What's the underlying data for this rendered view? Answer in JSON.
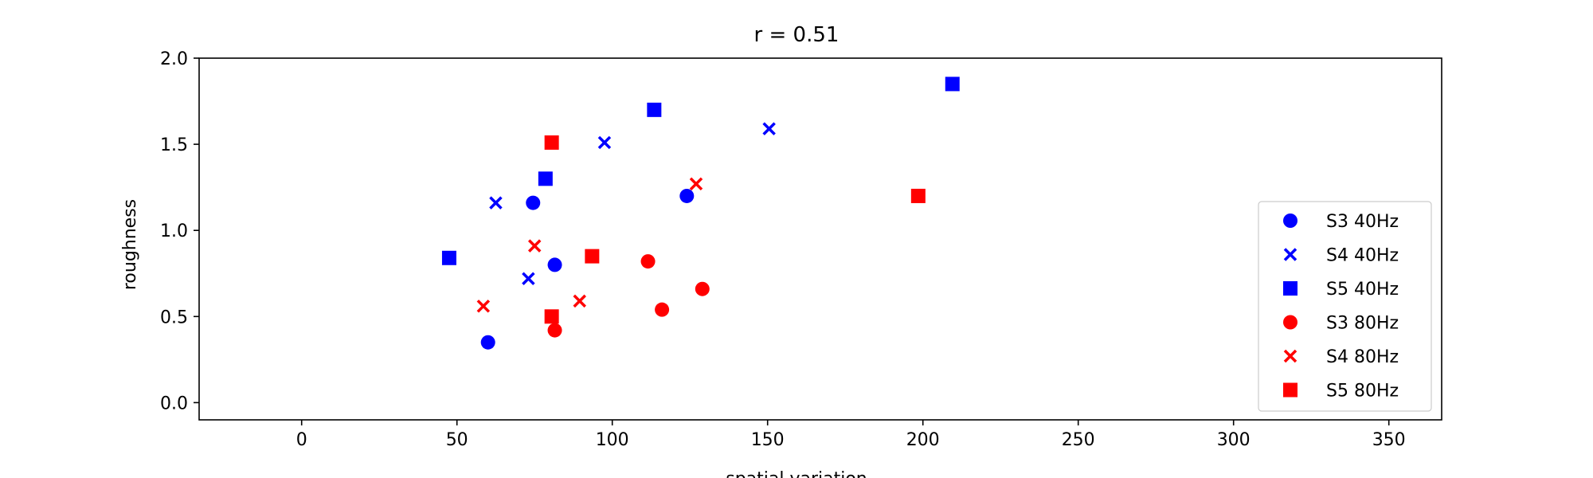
{
  "chart_data": {
    "type": "scatter",
    "title": "r = 0.51",
    "xlabel": "spatial variation",
    "ylabel": "roughness",
    "xlim": [
      -33,
      367
    ],
    "ylim": [
      -0.1,
      2.0
    ],
    "xticks": [
      0,
      50,
      100,
      150,
      200,
      250,
      300,
      350
    ],
    "yticks": [
      0.0,
      0.5,
      1.0,
      1.5,
      2.0
    ],
    "grid": false,
    "legend_position": "lower-right",
    "series": [
      {
        "name": "S3 40Hz",
        "color": "#0000ff",
        "marker": "circle",
        "points": [
          [
            60,
            0.35
          ],
          [
            74.5,
            1.16
          ],
          [
            81.5,
            0.8
          ],
          [
            124,
            1.2
          ]
        ]
      },
      {
        "name": "S4 40Hz",
        "color": "#0000ff",
        "marker": "x",
        "points": [
          [
            62.5,
            1.16
          ],
          [
            73,
            0.72
          ],
          [
            97.5,
            1.51
          ],
          [
            150.5,
            1.59
          ]
        ]
      },
      {
        "name": "S5 40Hz",
        "color": "#0000ff",
        "marker": "square",
        "points": [
          [
            47.5,
            0.84
          ],
          [
            78.5,
            1.3
          ],
          [
            113.5,
            1.7
          ],
          [
            209.5,
            1.85
          ]
        ]
      },
      {
        "name": "S3 80Hz",
        "color": "#ff0000",
        "marker": "circle",
        "points": [
          [
            81.5,
            0.42
          ],
          [
            111.5,
            0.82
          ],
          [
            116,
            0.54
          ],
          [
            129,
            0.66
          ]
        ]
      },
      {
        "name": "S4 80Hz",
        "color": "#ff0000",
        "marker": "x",
        "points": [
          [
            58.5,
            0.56
          ],
          [
            75,
            0.91
          ],
          [
            89.5,
            0.59
          ],
          [
            127,
            1.27
          ]
        ]
      },
      {
        "name": "S5 80Hz",
        "color": "#ff0000",
        "marker": "square",
        "points": [
          [
            80.5,
            1.51
          ],
          [
            80.5,
            0.5
          ],
          [
            93.5,
            0.85
          ],
          [
            198.5,
            1.2
          ]
        ]
      }
    ]
  }
}
